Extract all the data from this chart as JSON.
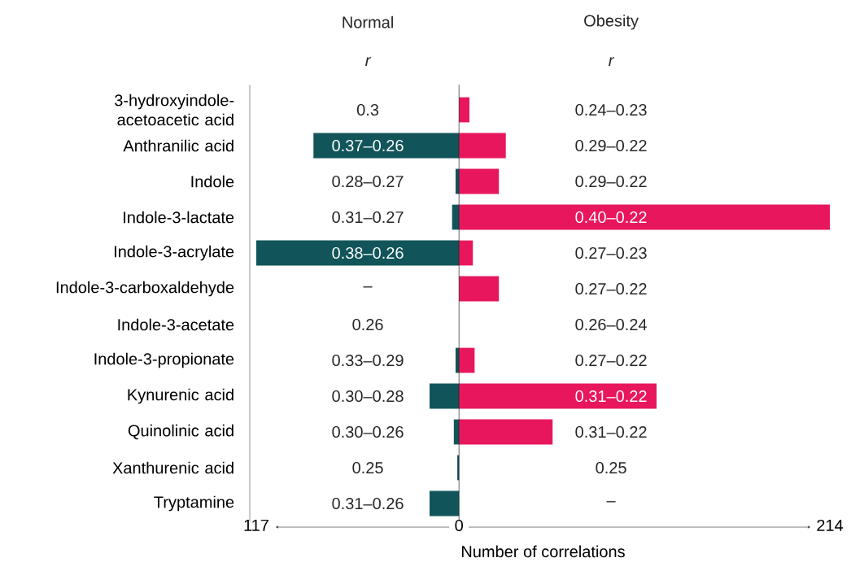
{
  "chart_data": {
    "type": "bar",
    "orientation": "horizontal",
    "stacked": true,
    "xlabel": "Number of correlations",
    "categories": [
      "3-hydroxyindole-acetoacetic acid",
      "Anthranilic acid",
      "Indole",
      "Indole-3-lactate",
      "Indole-3-acrylate",
      "Indole-3-carboxaldehyde",
      "Indole-3-acetate",
      "Indole-3-propionate",
      "Kynurenic acid",
      "Quinolinic acid",
      "Xanthurenic acid",
      "Tryptamine"
    ],
    "series": [
      {
        "color": "#11555a",
        "values": [
          0,
          -84,
          -2,
          -4,
          -117,
          0,
          0,
          -2,
          -17,
          -3,
          -1,
          -17
        ]
      },
      {
        "color": "#e8175d",
        "values": [
          6,
          27,
          23,
          214,
          8,
          23,
          0,
          9,
          114,
          54,
          0,
          0
        ]
      }
    ],
    "xlim": [
      -117,
      214
    ],
    "xticks": [
      {
        "value": -117,
        "label": "117"
      },
      0,
      214
    ],
    "annotations": [
      "Normal",
      "Obesity",
      "r",
      "r",
      "0.3",
      "0.37–0.26",
      "0.28–0.27",
      "0.31–0.27",
      "0.38–0.26",
      "–",
      "0.26",
      "0.33–0.29",
      "0.30–0.28",
      "0.30–0.26",
      "0.25",
      "0.31–0.26",
      "0.24–0.23",
      "0.29–0.22",
      "0.29–0.22",
      "0.40–0.22",
      "0.27–0.23",
      "0.27–0.22",
      "0.26–0.24",
      "0.27–0.22",
      "0.31–0.22",
      "0.31–0.22",
      "0.25",
      "–"
    ]
  }
}
